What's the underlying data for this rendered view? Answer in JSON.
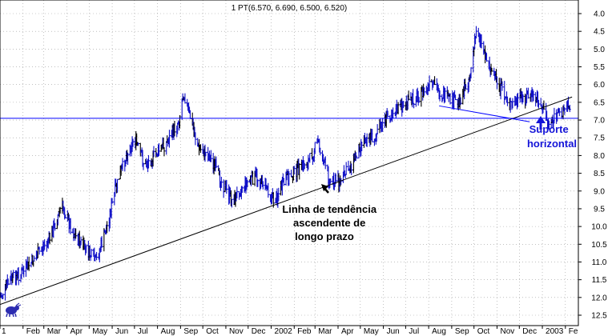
{
  "chart_data": {
    "type": "ohlc",
    "title": "1 PT(6.570, 6.690, 6.500, 6.520)",
    "y_axis": {
      "position": "right",
      "inverted": true,
      "ylim": [
        12.6,
        3.85
      ],
      "ticks": [
        "4.0",
        "4.5",
        "5.0",
        "5.5",
        "6.0",
        "6.5",
        "7.0",
        "7.5",
        "8.0",
        "8.5",
        "9.0",
        "9.5",
        "10.0",
        "10.5",
        "11.0",
        "11.5",
        "12.0",
        "12.5"
      ]
    },
    "x_axis": {
      "labels": [
        "1",
        "Feb",
        "Mar",
        "Apr",
        "May",
        "Jun",
        "Jul",
        "Aug",
        "Sep",
        "Oct",
        "Nov",
        "Dec",
        "2002",
        "Feb",
        "Mar",
        "Apr",
        "May",
        "Jun",
        "Jul",
        "Aug",
        "Sep",
        "Oct",
        "Nov",
        "Dec",
        "2003",
        "Fe"
      ]
    },
    "grid": true,
    "price_path": [
      [
        "2001-01-01",
        12.0
      ],
      [
        "2001-01-15",
        11.5
      ],
      [
        "2001-02-01",
        11.3
      ],
      [
        "2001-02-20",
        10.8
      ],
      [
        "2001-03-10",
        10.3
      ],
      [
        "2001-03-25",
        9.4
      ],
      [
        "2001-04-10",
        10.2
      ],
      [
        "2001-04-25",
        10.6
      ],
      [
        "2001-05-10",
        11.0
      ],
      [
        "2001-05-25",
        10.0
      ],
      [
        "2001-06-05",
        9.0
      ],
      [
        "2001-06-20",
        8.0
      ],
      [
        "2001-07-01",
        7.5
      ],
      [
        "2001-07-15",
        8.3
      ],
      [
        "2001-08-01",
        7.9
      ],
      [
        "2001-08-15",
        7.6
      ],
      [
        "2001-08-30",
        7.0
      ],
      [
        "2001-09-05",
        6.2
      ],
      [
        "2001-09-15",
        7.0
      ],
      [
        "2001-09-25",
        7.8
      ],
      [
        "2001-10-10",
        8.0
      ],
      [
        "2001-10-25",
        8.7
      ],
      [
        "2001-11-10",
        9.3
      ],
      [
        "2001-11-25",
        8.8
      ],
      [
        "2001-12-10",
        8.6
      ],
      [
        "2001-12-25",
        8.8
      ],
      [
        "2002-01-05",
        9.3
      ],
      [
        "2002-01-20",
        8.7
      ],
      [
        "2002-02-05",
        8.4
      ],
      [
        "2002-02-20",
        8.2
      ],
      [
        "2002-03-05",
        7.6
      ],
      [
        "2002-03-20",
        8.7
      ],
      [
        "2002-04-05",
        8.7
      ],
      [
        "2002-04-20",
        8.2
      ],
      [
        "2002-05-05",
        7.5
      ],
      [
        "2002-05-20",
        7.5
      ],
      [
        "2002-06-05",
        6.9
      ],
      [
        "2002-06-20",
        6.7
      ],
      [
        "2002-07-05",
        6.5
      ],
      [
        "2002-07-20",
        6.3
      ],
      [
        "2002-08-05",
        6.0
      ],
      [
        "2002-08-25",
        6.4
      ],
      [
        "2002-09-10",
        6.5
      ],
      [
        "2002-09-25",
        5.8
      ],
      [
        "2002-10-05",
        4.4
      ],
      [
        "2002-10-20",
        5.4
      ],
      [
        "2002-11-05",
        6.1
      ],
      [
        "2002-11-20",
        6.6
      ],
      [
        "2002-12-05",
        6.4
      ],
      [
        "2002-12-15",
        6.3
      ],
      [
        "2002-12-28",
        6.5
      ],
      [
        "2003-01-10",
        7.1
      ],
      [
        "2003-01-25",
        6.8
      ],
      [
        "2003-02-08",
        6.52
      ]
    ],
    "annotations": {
      "trendline": {
        "label": "Linha de tendência ascendente de longo prazo",
        "from": [
          "2001-01-01",
          12.2
        ],
        "to": [
          "2003-02-10",
          6.35
        ]
      },
      "support": {
        "label": "Suporte horizontal",
        "level": 6.95
      },
      "downtrend": {
        "from": [
          "2002-08-15",
          6.6
        ],
        "to": [
          "2002-12-15",
          7.05
        ]
      }
    },
    "colors": {
      "bars": "#1010c8",
      "bars_dark": "#000000",
      "support": "#0000ff",
      "trendline": "#000000",
      "grid": "#9a9a9a"
    }
  },
  "annotation_text": {
    "trend": [
      "Linha de tendência",
      "ascendente de",
      "longo prazo"
    ],
    "support": [
      "Suporte",
      "horizontal"
    ]
  }
}
